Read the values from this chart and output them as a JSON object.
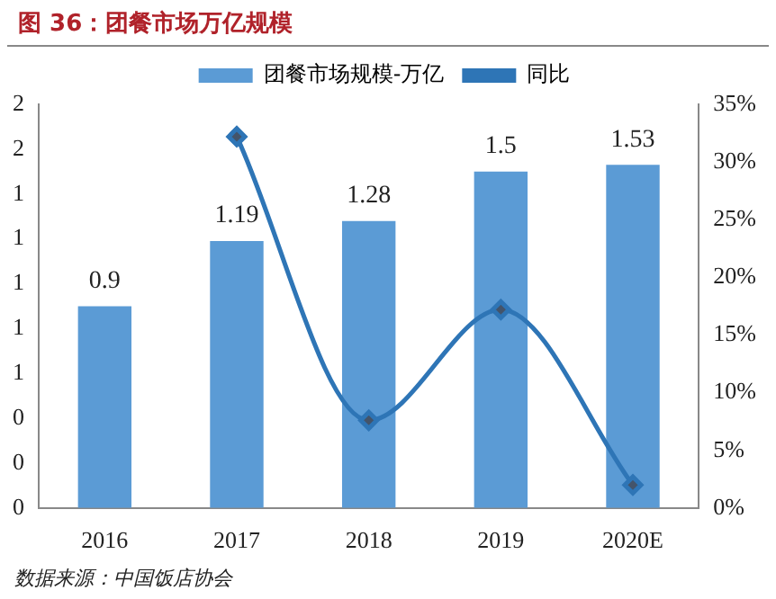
{
  "chart_data": {
    "type": "bar",
    "title": "图 36：团餐市场万亿规模",
    "categories": [
      "2016",
      "2017",
      "2018",
      "2019",
      "2020E"
    ],
    "series": [
      {
        "name": "团餐市场规模-万亿",
        "color": "#5b9bd5",
        "values": [
          0.9,
          1.19,
          1.28,
          1.5,
          1.53
        ],
        "data_labels": true
      },
      {
        "name": "同比",
        "type": "line",
        "axis": "y2",
        "color": "#2e75b6",
        "marker": "diamond",
        "values": [
          null,
          32.2,
          7.6,
          17.2,
          2.0
        ]
      }
    ],
    "ylim": [
      0,
      1.8
    ],
    "yticks": [
      {
        "value": 0,
        "label": "0"
      },
      {
        "value": 0.2,
        "label": "0"
      },
      {
        "value": 0.4,
        "label": "0"
      },
      {
        "value": 0.6,
        "label": "1"
      },
      {
        "value": 0.8,
        "label": "1"
      },
      {
        "value": 1.0,
        "label": "1"
      },
      {
        "value": 1.2,
        "label": "1"
      },
      {
        "value": 1.4,
        "label": "1"
      },
      {
        "value": 1.6,
        "label": "2"
      },
      {
        "value": 1.8,
        "label": "2"
      }
    ],
    "y2lim": [
      0,
      35
    ],
    "y2ticks": [
      {
        "value": 0,
        "label": "0%"
      },
      {
        "value": 5,
        "label": "5%"
      },
      {
        "value": 10,
        "label": "10%"
      },
      {
        "value": 15,
        "label": "15%"
      },
      {
        "value": 20,
        "label": "20%"
      },
      {
        "value": 25,
        "label": "25%"
      },
      {
        "value": 30,
        "label": "30%"
      },
      {
        "value": 35,
        "label": "35%"
      }
    ],
    "legend": "top",
    "grid": false,
    "annotations": [
      "数据来源：中国饭店协会"
    ]
  }
}
